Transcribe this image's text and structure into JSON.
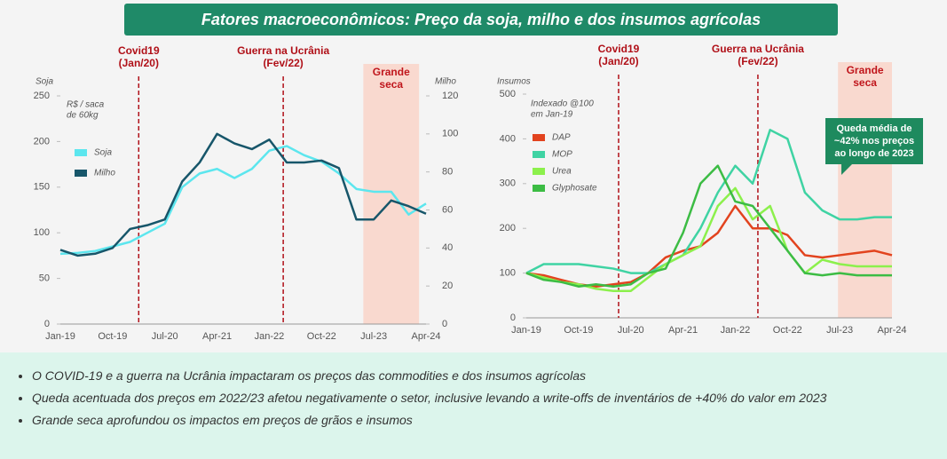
{
  "header": {
    "title": "Fatores macroeconômicos: Preço da soja, milho e dos insumos agrícolas"
  },
  "bullets": [
    "O COVID-19 e a guerra na Ucrânia impactaram os preços das commodities e dos insumos agrícolas",
    "Queda acentuada dos preços em 2022/23 afetou negativamente o setor, inclusive levando a write-offs de inventários de +40% do valor em 2023",
    "Grande seca aprofundou os impactos em preços de grãos e insumos"
  ],
  "chart_data": [
    {
      "type": "line",
      "y_label": "Soja",
      "y2_label": "Milho",
      "subtitle": [
        "R$ / saca",
        "de 60kg"
      ],
      "categories": [
        "Jan-19",
        null,
        null,
        "Oct-19",
        null,
        null,
        "Jul-20",
        null,
        null,
        "Apr-21",
        null,
        null,
        "Jan-22",
        null,
        null,
        "Oct-22",
        null,
        null,
        "Jul-23",
        null,
        null,
        "Apr-24"
      ],
      "series": [
        {
          "name": "Soja",
          "color": "#5ce6ee",
          "values": [
            77,
            78,
            80,
            85,
            90,
            100,
            110,
            150,
            165,
            170,
            160,
            170,
            190,
            195,
            185,
            178,
            165,
            148,
            145,
            145,
            120,
            132
          ]
        },
        {
          "name": "Milho",
          "color": "#17566a",
          "axis": "y2",
          "values": [
            39,
            36,
            37,
            40,
            50,
            52,
            55,
            75,
            85,
            100,
            95,
            92,
            97,
            85,
            85,
            86,
            82,
            55,
            55,
            65,
            62,
            58
          ]
        }
      ],
      "ylim": [
        0,
        250
      ],
      "yticks": [
        0,
        50,
        100,
        150,
        200,
        250
      ],
      "y2lim": [
        0,
        120
      ],
      "y2ticks": [
        0,
        20,
        40,
        60,
        80,
        100,
        120
      ],
      "vlines": [
        {
          "label": [
            "Covid19",
            "(Jan/20)"
          ],
          "x": 4.5
        },
        {
          "label": [
            "Guerra na Ucrânia",
            "(Fev/22)"
          ],
          "x": 12.8
        }
      ],
      "band": {
        "label": [
          "Grande",
          "seca"
        ],
        "x": [
          17.4,
          20.6
        ]
      }
    },
    {
      "type": "line",
      "y_label": "Insumos",
      "subtitle": [
        "Indexado @100",
        "em Jan-19"
      ],
      "categories": [
        "Jan-19",
        null,
        null,
        "Oct-19",
        null,
        null,
        "Jul-20",
        null,
        null,
        "Apr-21",
        null,
        null,
        "Jan-22",
        null,
        null,
        "Oct-22",
        null,
        null,
        "Jul-23",
        null,
        null,
        "Apr-24"
      ],
      "series": [
        {
          "name": "DAP",
          "color": "#e2431e",
          "values": [
            100,
            95,
            85,
            75,
            70,
            75,
            80,
            100,
            135,
            150,
            160,
            190,
            250,
            200,
            200,
            185,
            140,
            135,
            140,
            145,
            150,
            140
          ]
        },
        {
          "name": "MOP",
          "color": "#3fd3a3",
          "values": [
            100,
            120,
            120,
            120,
            115,
            110,
            100,
            100,
            120,
            140,
            200,
            280,
            340,
            300,
            420,
            400,
            280,
            240,
            220,
            220,
            225,
            225
          ]
        },
        {
          "name": "Urea",
          "color": "#8cf04c",
          "values": [
            100,
            90,
            80,
            75,
            65,
            60,
            60,
            90,
            120,
            140,
            160,
            250,
            290,
            220,
            250,
            150,
            100,
            130,
            120,
            115,
            115,
            115
          ]
        },
        {
          "name": "Glyphosate",
          "color": "#3cbc44",
          "values": [
            100,
            85,
            80,
            70,
            75,
            70,
            75,
            100,
            110,
            190,
            300,
            340,
            260,
            250,
            200,
            150,
            100,
            95,
            100,
            95,
            95,
            95
          ]
        }
      ],
      "ylim": [
        0,
        500
      ],
      "yticks": [
        0,
        100,
        200,
        300,
        400,
        500
      ],
      "vlines": [
        {
          "label": [
            "Covid19",
            "(Jan/20)"
          ],
          "x": 5.3
        },
        {
          "label": [
            "Guerra na Ucrânia",
            "(Fev/22)"
          ],
          "x": 13.3
        }
      ],
      "band": {
        "label": [
          "Grande",
          "seca"
        ],
        "x": [
          17.9,
          21
        ]
      },
      "callout": [
        "Queda média de",
        "~42% nos preços",
        "ao longo de 2023"
      ]
    }
  ]
}
